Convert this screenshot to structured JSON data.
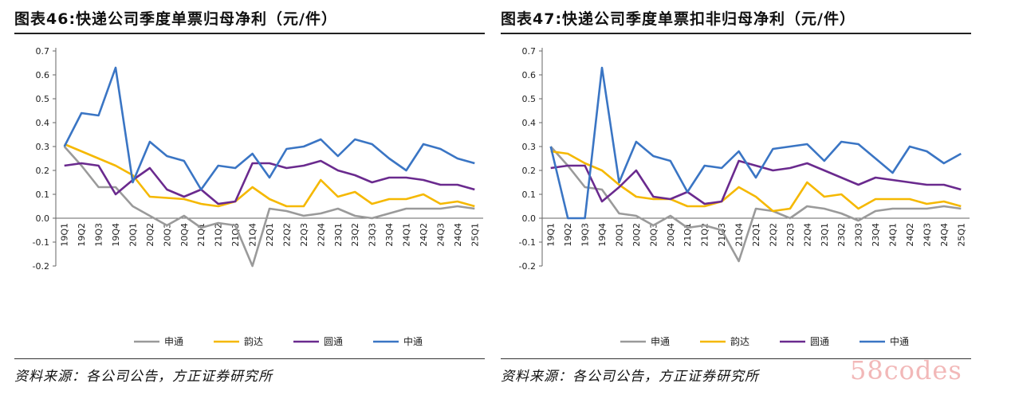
{
  "watermark": "58codes",
  "colors": {
    "shentong": "#9a9a9a",
    "yunda": "#f5b800",
    "yuantong": "#6a2a8e",
    "zhongtong": "#3a75c4"
  },
  "chart_data": [
    {
      "type": "line",
      "title": "图表46:快递公司季度单票归母净利（元/件）",
      "source": "资料来源：各公司公告，方正证券研究所",
      "categories": [
        "19Q1",
        "19Q2",
        "19Q3",
        "19Q4",
        "20Q1",
        "20Q2",
        "20Q3",
        "20Q4",
        "21Q1",
        "21Q2",
        "21Q3",
        "21Q4",
        "22Q1",
        "22Q2",
        "22Q3",
        "22Q4",
        "23Q1",
        "23Q2",
        "23Q3",
        "23Q4",
        "24Q1",
        "24Q2",
        "24Q3",
        "24Q4",
        "25Q1"
      ],
      "ylim": [
        -0.2,
        0.7
      ],
      "yticks": [
        "-0.2",
        "-0.1",
        "0.0",
        "0.1",
        "0.2",
        "0.3",
        "0.4",
        "0.5",
        "0.6",
        "0.7"
      ],
      "legend_position": "bottom",
      "series": [
        {
          "name": "申通",
          "color_key": "shentong",
          "values": [
            0.3,
            0.22,
            0.13,
            0.13,
            0.05,
            0.01,
            -0.03,
            0.01,
            -0.04,
            -0.02,
            -0.03,
            -0.2,
            0.04,
            0.03,
            0.01,
            0.02,
            0.04,
            0.01,
            0.0,
            0.02,
            0.04,
            0.04,
            0.04,
            0.05,
            0.04
          ]
        },
        {
          "name": "韵达",
          "color_key": "yunda",
          "values": [
            0.31,
            0.28,
            0.25,
            0.22,
            0.18,
            0.09,
            0.085,
            0.08,
            0.06,
            0.05,
            0.07,
            0.13,
            0.08,
            0.05,
            0.05,
            0.16,
            0.09,
            0.11,
            0.06,
            0.08,
            0.08,
            0.1,
            0.06,
            0.07,
            0.05
          ]
        },
        {
          "name": "圆通",
          "color_key": "yuantong",
          "values": [
            0.22,
            0.23,
            0.22,
            0.1,
            0.16,
            0.21,
            0.12,
            0.09,
            0.12,
            0.06,
            0.07,
            0.23,
            0.23,
            0.21,
            0.22,
            0.24,
            0.2,
            0.18,
            0.15,
            0.17,
            0.17,
            0.16,
            0.14,
            0.14,
            0.12
          ]
        },
        {
          "name": "中通",
          "color_key": "zhongtong",
          "values": [
            0.3,
            0.44,
            0.43,
            0.63,
            0.15,
            0.32,
            0.26,
            0.24,
            0.12,
            0.22,
            0.21,
            0.27,
            0.17,
            0.29,
            0.3,
            0.33,
            0.26,
            0.33,
            0.31,
            0.25,
            0.2,
            0.31,
            0.29,
            0.25,
            0.23
          ]
        }
      ]
    },
    {
      "type": "line",
      "title": "图表47:快递公司季度单票扣非归母净利（元/件）",
      "source": "资料来源：各公司公告，方正证券研究所",
      "categories": [
        "19Q1",
        "19Q2",
        "19Q3",
        "19Q4",
        "20Q1",
        "20Q2",
        "20Q3",
        "20Q4",
        "21Q1",
        "21Q2",
        "21Q3",
        "21Q4",
        "22Q1",
        "22Q2",
        "22Q3",
        "22Q4",
        "23Q1",
        "23Q2",
        "23Q3",
        "23Q4",
        "24Q1",
        "24Q2",
        "24Q3",
        "24Q4",
        "25Q1"
      ],
      "ylim": [
        -0.2,
        0.7
      ],
      "yticks": [
        "-0.2",
        "-0.1",
        "0.0",
        "0.1",
        "0.2",
        "0.3",
        "0.4",
        "0.5",
        "0.6",
        "0.7"
      ],
      "legend_position": "bottom",
      "series": [
        {
          "name": "申通",
          "color_key": "shentong",
          "values": [
            0.3,
            0.22,
            0.13,
            0.12,
            0.02,
            0.01,
            -0.03,
            0.01,
            -0.04,
            -0.03,
            -0.05,
            -0.18,
            0.04,
            0.03,
            0.0,
            0.05,
            0.04,
            0.02,
            -0.01,
            0.03,
            0.04,
            0.04,
            0.04,
            0.05,
            0.04
          ]
        },
        {
          "name": "韵达",
          "color_key": "yunda",
          "values": [
            0.28,
            0.27,
            0.23,
            0.2,
            0.14,
            0.09,
            0.08,
            0.08,
            0.05,
            0.05,
            0.07,
            0.13,
            0.09,
            0.03,
            0.04,
            0.15,
            0.09,
            0.1,
            0.04,
            0.08,
            0.08,
            0.08,
            0.06,
            0.07,
            0.05
          ]
        },
        {
          "name": "圆通",
          "color_key": "yuantong",
          "values": [
            0.21,
            0.22,
            0.22,
            0.07,
            0.13,
            0.2,
            0.09,
            0.08,
            0.11,
            0.06,
            0.07,
            0.24,
            0.22,
            0.2,
            0.21,
            0.23,
            0.2,
            0.17,
            0.14,
            0.17,
            0.16,
            0.15,
            0.14,
            0.14,
            0.12
          ]
        },
        {
          "name": "中通",
          "color_key": "zhongtong",
          "values": [
            0.3,
            0.0,
            0.0,
            0.63,
            0.15,
            0.32,
            0.26,
            0.24,
            0.11,
            0.22,
            0.21,
            0.28,
            0.17,
            0.29,
            0.3,
            0.31,
            0.24,
            0.32,
            0.31,
            0.25,
            0.19,
            0.3,
            0.28,
            0.23,
            0.27
          ]
        }
      ]
    }
  ]
}
